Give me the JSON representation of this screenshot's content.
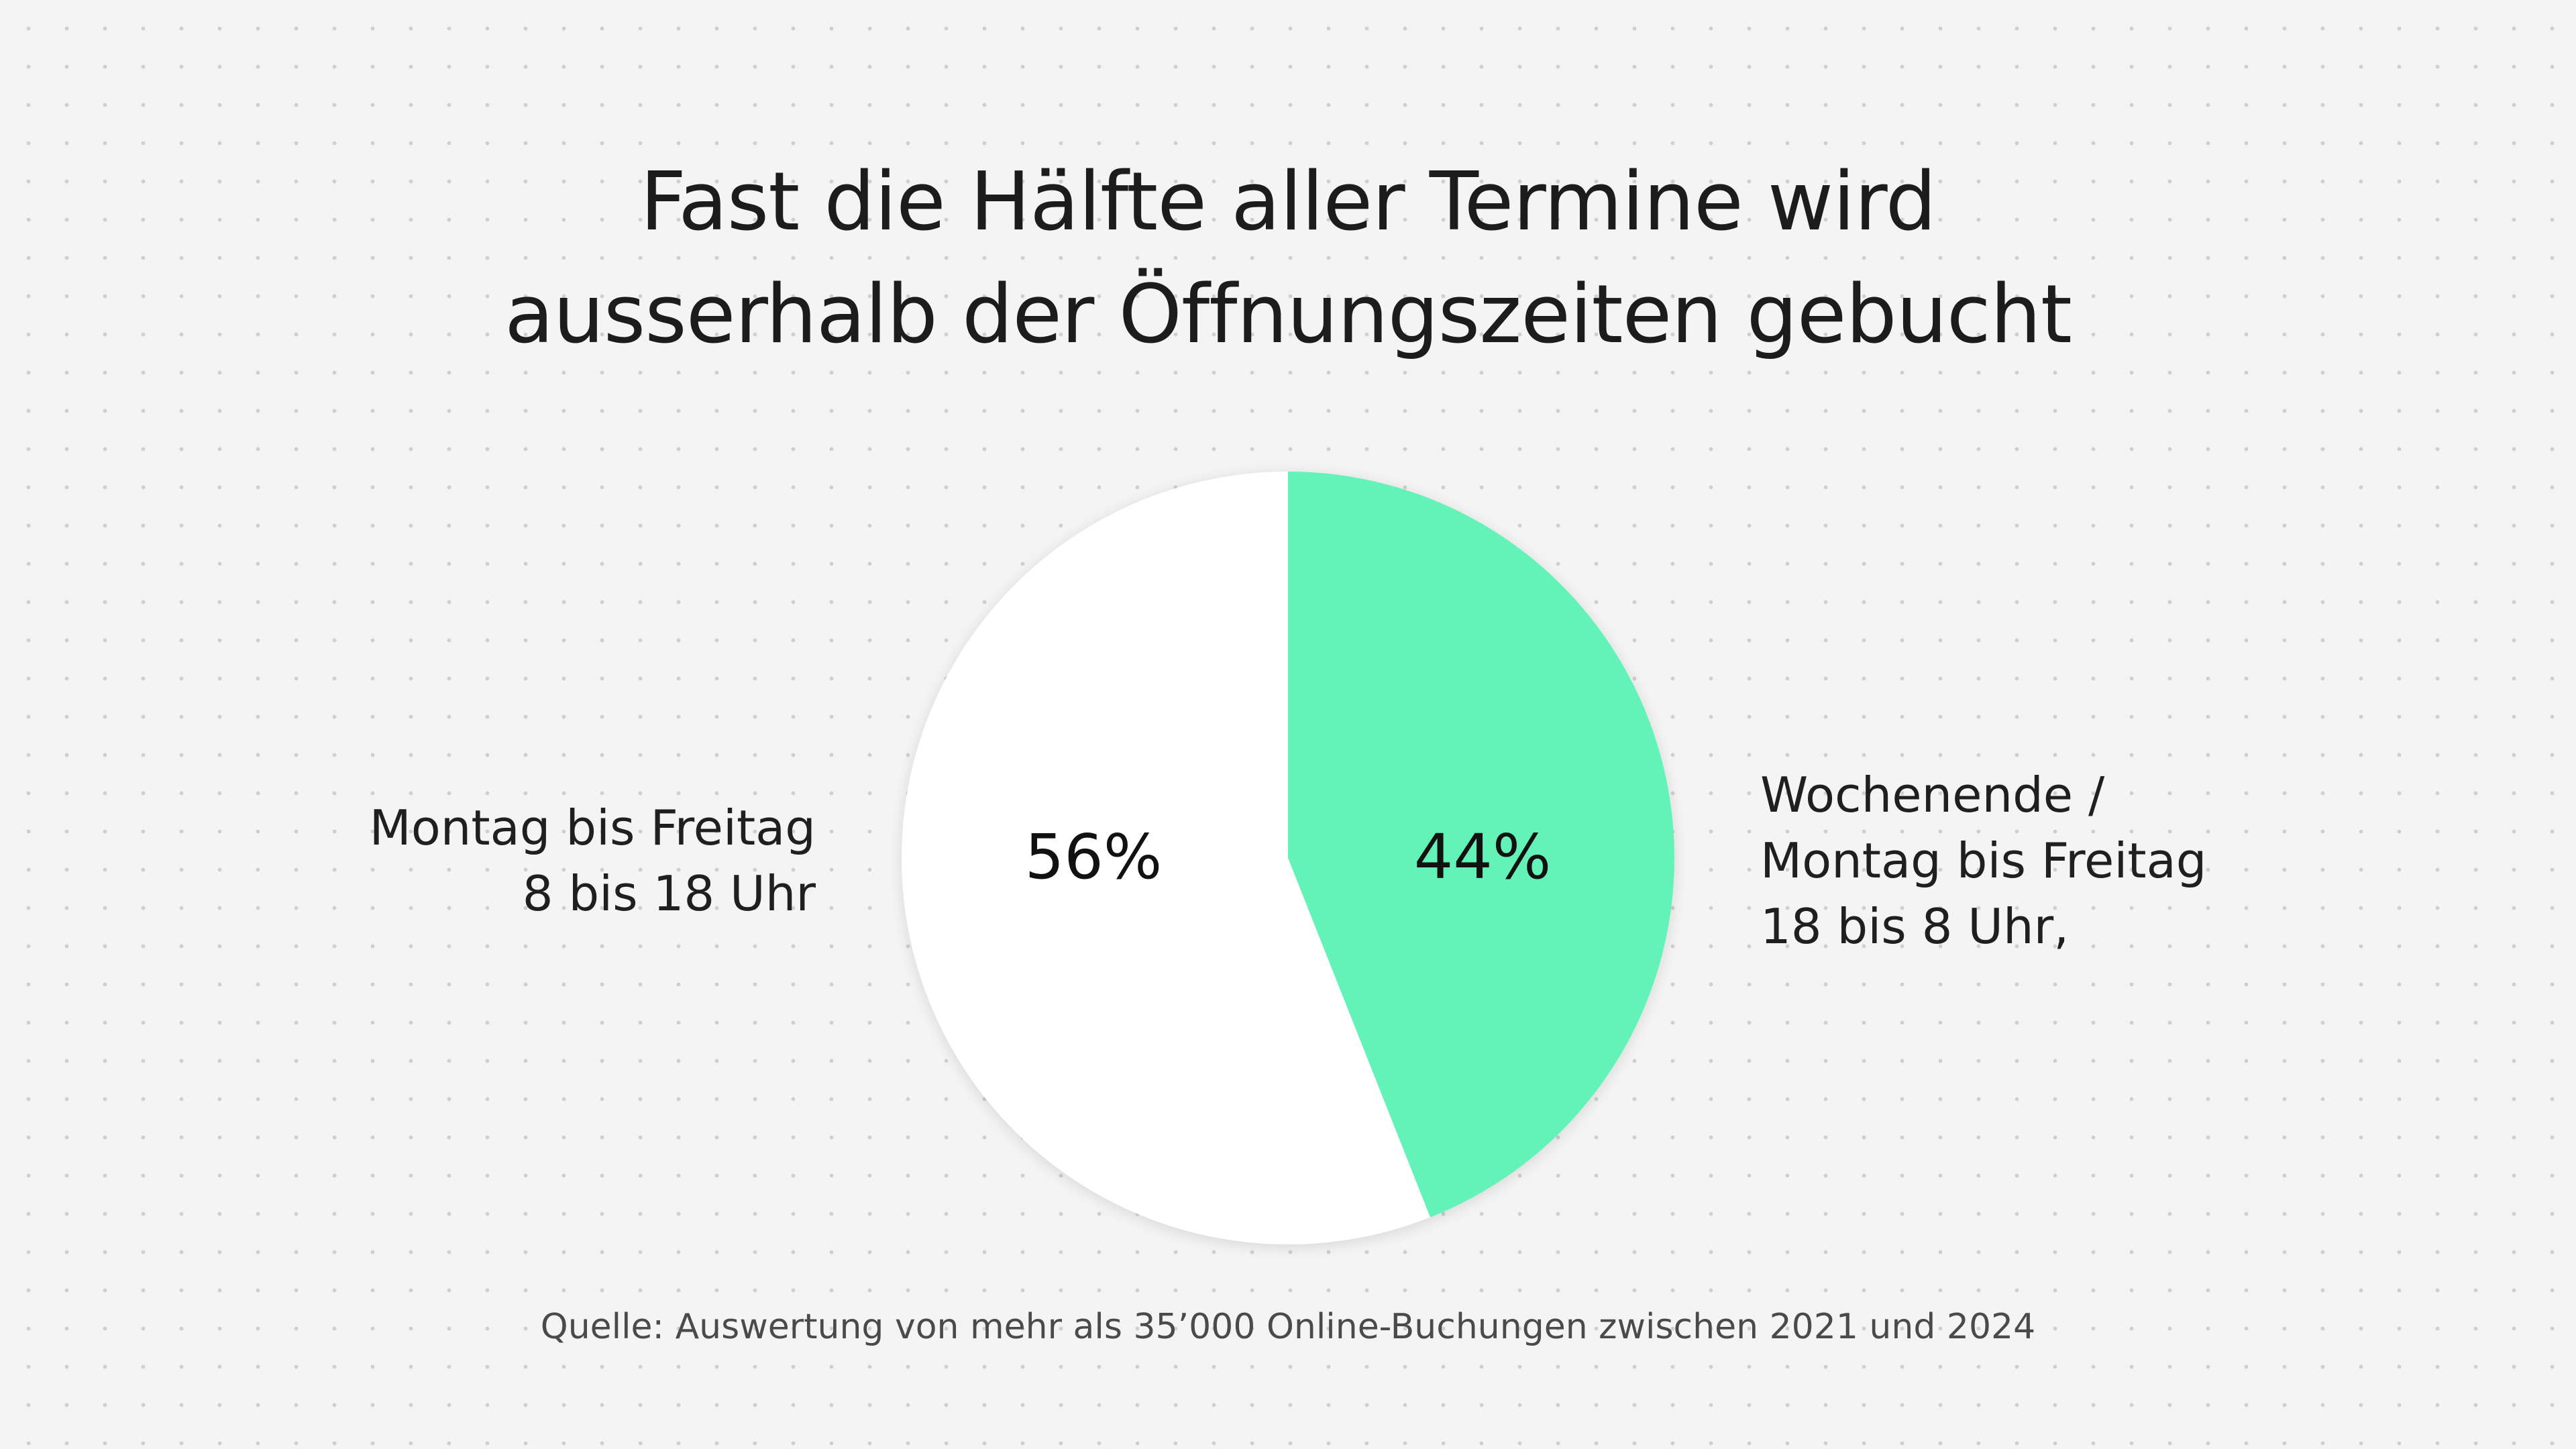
{
  "title": {
    "line1": "Fast die Hälfte aller Termine wird",
    "line2": "ausserhalb der Öffnungszeiten gebucht"
  },
  "colors": {
    "background": "#f4f4f4",
    "slice_weekday": "#ffffff",
    "slice_offhours": "#63f2b8",
    "text": "#1b1b1b"
  },
  "chart_data": {
    "type": "pie",
    "title": "Fast die Hälfte aller Termine wird ausserhalb der Öffnungszeiten gebucht",
    "slices": [
      {
        "name": "Montag bis Freitag 8 bis 18 Uhr",
        "value": 56,
        "label": "56%",
        "color": "#ffffff"
      },
      {
        "name": "Wochenende / Montag bis Freitag 18 bis 8 Uhr,",
        "value": 44,
        "label": "44%",
        "color": "#63f2b8"
      }
    ],
    "start_angle": "12 o'clock, clockwise starting with the 44% slice"
  },
  "legend": {
    "left": {
      "line1": "Montag bis Freitag",
      "line2": "8 bis 18 Uhr"
    },
    "right": {
      "line1": "Wochenende /",
      "line2": "Montag bis Freitag",
      "line3": "18 bis 8 Uhr,"
    }
  },
  "source": "Quelle: Auswertung von mehr als 35’000 Online-Buchungen zwischen 2021 und 2024"
}
